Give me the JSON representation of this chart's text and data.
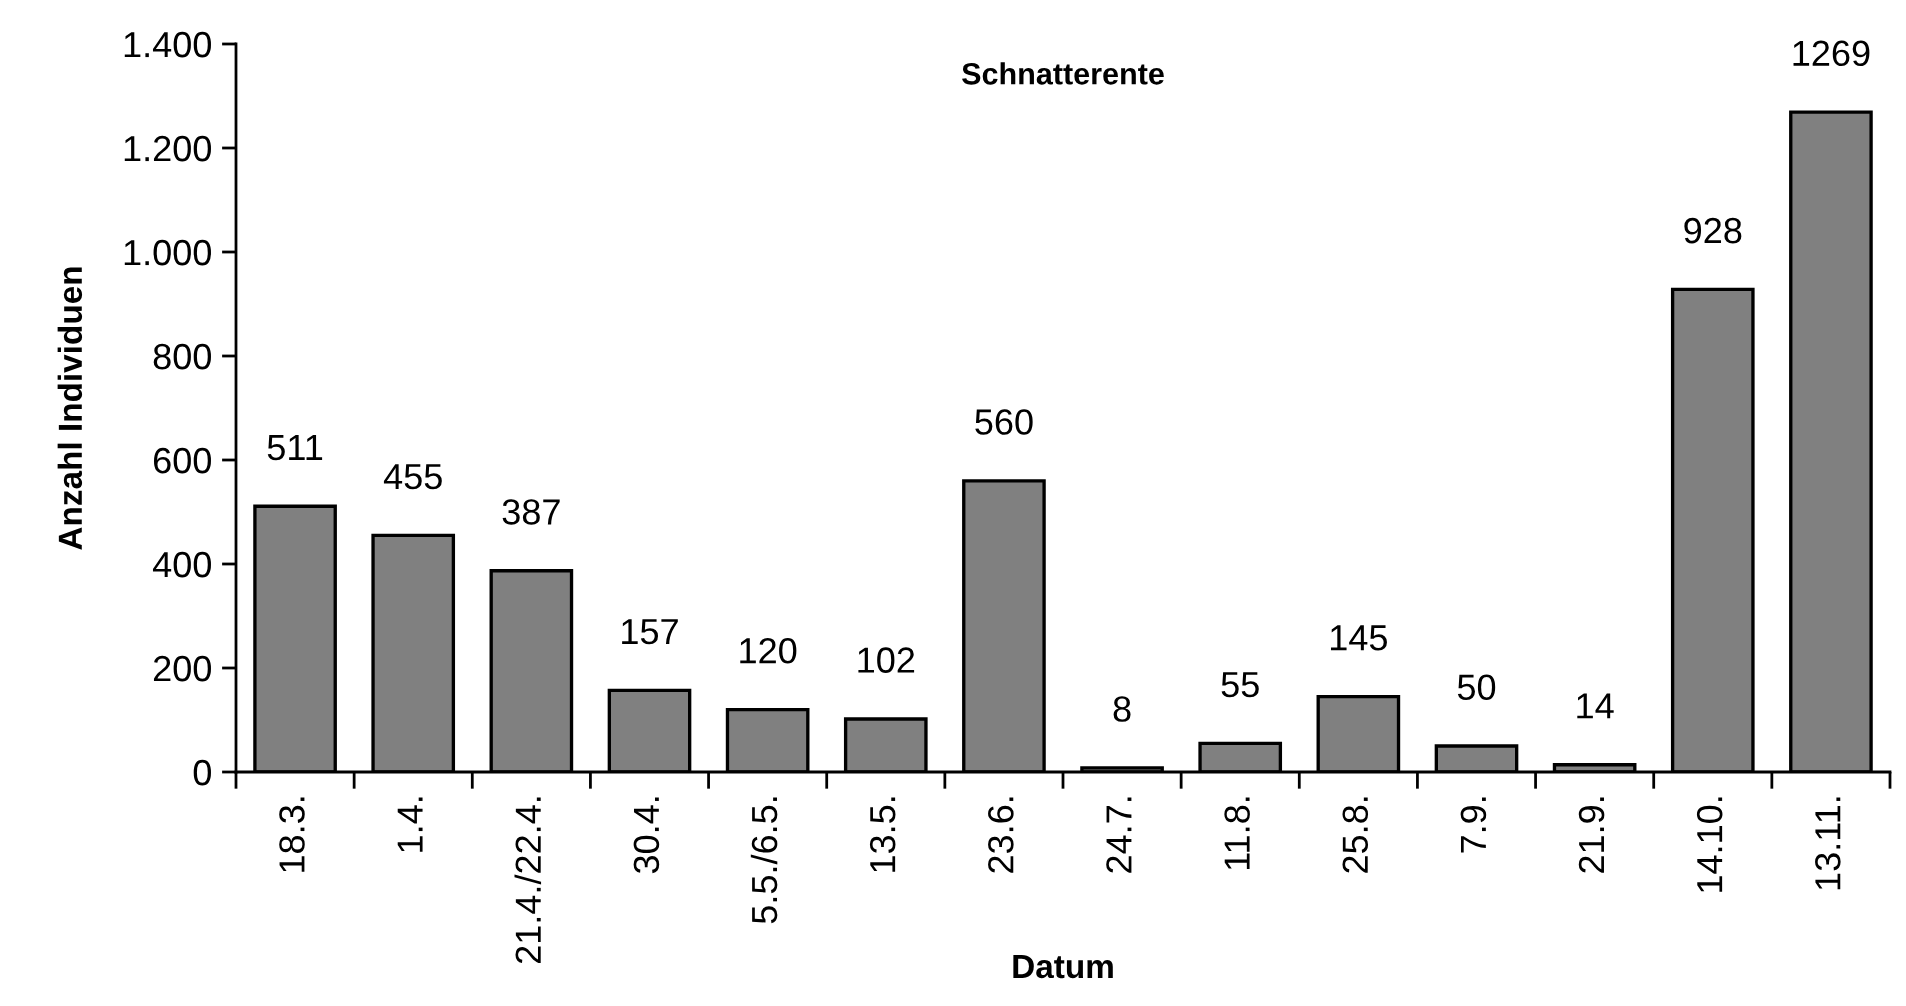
{
  "chart_data": {
    "type": "bar",
    "title": "Schnatterente",
    "xlabel": "Datum",
    "ylabel": "Anzahl Individuen",
    "categories": [
      "18.3.",
      "1.4.",
      "21.4./22.4.",
      "30.4.",
      "5.5./6.5.",
      "13.5.",
      "23.6.",
      "24.7.",
      "11.8.",
      "25.8.",
      "7.9.",
      "21.9.",
      "14.10.",
      "13.11."
    ],
    "values": [
      511,
      455,
      387,
      157,
      120,
      102,
      560,
      8,
      55,
      145,
      50,
      14,
      928,
      1269
    ],
    "color": "#808080",
    "ylim": [
      0,
      1400
    ],
    "yticks": [
      0,
      200,
      400,
      600,
      800,
      {
        "value": 1000,
        "label": "1.000"
      },
      {
        "value": 1200,
        "label": "1.200"
      },
      {
        "value": 1400,
        "label": "1.400"
      }
    ],
    "data_labels": true,
    "grid": false,
    "legend": false
  }
}
